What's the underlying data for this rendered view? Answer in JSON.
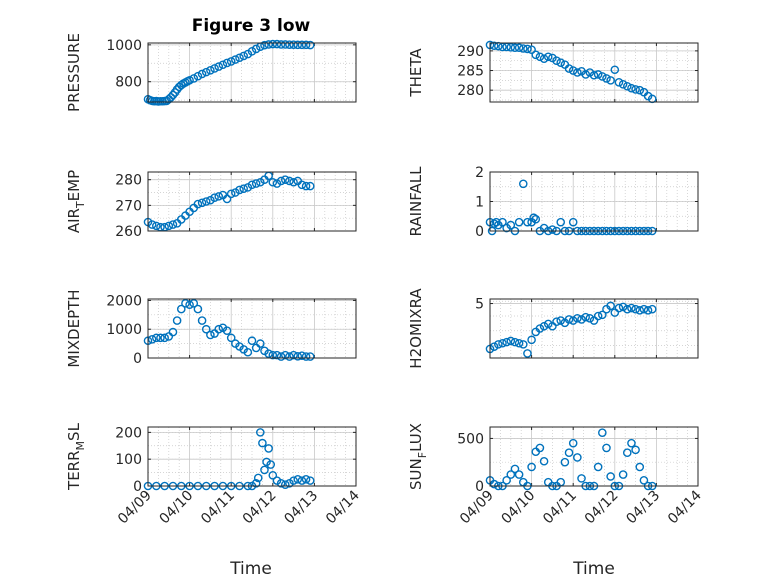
{
  "figure": {
    "title": "Figure 3 low",
    "xlabel": "Time"
  },
  "colors": {
    "marker": "#0072BD",
    "axis": "#262626",
    "grid": "#c8c8c8"
  },
  "chart_data": [
    {
      "type": "scatter",
      "ylabel": "PRESSURE",
      "ylabel_sub": "",
      "ylim": [
        690,
        1010
      ],
      "yticks": [
        800,
        1000
      ],
      "xticks": [
        "04/09",
        "04/10",
        "04/11",
        "04/12",
        "04/13",
        "04/14"
      ],
      "show_xticklabels": false,
      "x": [
        0.0,
        0.05,
        0.1,
        0.15,
        0.2,
        0.25,
        0.3,
        0.35,
        0.4,
        0.45,
        0.5,
        0.55,
        0.6,
        0.65,
        0.7,
        0.75,
        0.8,
        0.85,
        0.9,
        0.95,
        1.0,
        1.1,
        1.2,
        1.3,
        1.4,
        1.5,
        1.6,
        1.7,
        1.8,
        1.9,
        2.0,
        2.1,
        2.2,
        2.3,
        2.4,
        2.5,
        2.6,
        2.7,
        2.8,
        2.9,
        3.0,
        3.1,
        3.2,
        3.3,
        3.4,
        3.5,
        3.6,
        3.7,
        3.8,
        3.9
      ],
      "y": [
        705,
        700,
        696,
        694,
        695,
        693,
        694,
        694,
        695,
        696,
        705,
        715,
        728,
        742,
        758,
        772,
        782,
        790,
        796,
        802,
        808,
        818,
        830,
        842,
        852,
        862,
        872,
        882,
        892,
        902,
        910,
        920,
        930,
        940,
        950,
        965,
        978,
        990,
        998,
        1002,
        1004,
        1004,
        1002,
        1002,
        1001,
        1001,
        1000,
        1000,
        1000,
        999
      ]
    },
    {
      "type": "scatter",
      "ylabel": "THETA",
      "ylabel_sub": "",
      "ylim": [
        277,
        292
      ],
      "yticks": [
        280,
        285,
        290
      ],
      "xticks": [
        "04/09",
        "04/10",
        "04/11",
        "04/12",
        "04/13",
        "04/14"
      ],
      "show_xticklabels": false,
      "x": [
        0.0,
        0.1,
        0.2,
        0.3,
        0.4,
        0.5,
        0.6,
        0.7,
        0.8,
        0.9,
        1.0,
        1.1,
        1.2,
        1.3,
        1.4,
        1.5,
        1.6,
        1.7,
        1.8,
        1.9,
        2.0,
        2.1,
        2.2,
        2.3,
        2.4,
        2.5,
        2.6,
        2.7,
        2.8,
        2.9,
        3.0,
        3.1,
        3.2,
        3.3,
        3.4,
        3.5,
        3.6,
        3.7,
        3.8,
        3.9
      ],
      "y": [
        291.5,
        291.3,
        291.2,
        291.0,
        291.0,
        290.9,
        290.8,
        290.8,
        290.6,
        290.5,
        290.3,
        289.0,
        288.5,
        288.0,
        288.5,
        288.2,
        287.5,
        287.0,
        286.5,
        285.5,
        285.0,
        284.5,
        284.8,
        284.0,
        284.5,
        283.8,
        284.0,
        283.5,
        283.0,
        282.5,
        285.2,
        282.0,
        281.5,
        281.0,
        280.5,
        280.2,
        280.0,
        279.5,
        278.5,
        277.8
      ]
    },
    {
      "type": "scatter",
      "ylabel": "AIR",
      "ylabel_sub": "T",
      "ylabel_suffix": "EMP",
      "ylim": [
        260,
        283
      ],
      "yticks": [
        260,
        270,
        280
      ],
      "xticks": [
        "04/09",
        "04/10",
        "04/11",
        "04/12",
        "04/13",
        "04/14"
      ],
      "show_xticklabels": false,
      "x": [
        0.0,
        0.1,
        0.2,
        0.3,
        0.4,
        0.5,
        0.6,
        0.7,
        0.8,
        0.9,
        1.0,
        1.1,
        1.2,
        1.3,
        1.4,
        1.5,
        1.6,
        1.7,
        1.8,
        1.9,
        2.0,
        2.1,
        2.2,
        2.3,
        2.4,
        2.5,
        2.6,
        2.7,
        2.8,
        2.9,
        3.0,
        3.1,
        3.2,
        3.3,
        3.4,
        3.5,
        3.6,
        3.7,
        3.8,
        3.9
      ],
      "y": [
        263.5,
        262.5,
        262.0,
        261.5,
        261.5,
        262.0,
        262.5,
        263.0,
        264.5,
        266.0,
        267.5,
        269.0,
        270.5,
        271.0,
        271.5,
        272.0,
        273.0,
        273.5,
        274.0,
        272.5,
        274.5,
        275.0,
        276.0,
        276.5,
        277.0,
        278.0,
        278.5,
        279.0,
        280.0,
        281.5,
        279.0,
        278.5,
        279.5,
        280.0,
        279.5,
        279.0,
        279.5,
        278.0,
        277.5,
        277.5
      ]
    },
    {
      "type": "scatter",
      "ylabel": "RAINFALL",
      "ylabel_sub": "",
      "ylim": [
        0,
        2
      ],
      "yticks": [
        0,
        1,
        2
      ],
      "xticks": [
        "04/09",
        "04/10",
        "04/11",
        "04/12",
        "04/13",
        "04/14"
      ],
      "show_xticklabels": false,
      "x": [
        0.0,
        0.05,
        0.1,
        0.15,
        0.2,
        0.3,
        0.4,
        0.5,
        0.6,
        0.7,
        0.8,
        0.9,
        1.0,
        1.05,
        1.1,
        1.2,
        1.3,
        1.4,
        1.5,
        1.6,
        1.7,
        1.8,
        1.9,
        2.0,
        2.1,
        2.2,
        2.3,
        2.4,
        2.5,
        2.6,
        2.7,
        2.8,
        2.9,
        3.0,
        3.1,
        3.2,
        3.3,
        3.4,
        3.5,
        3.6,
        3.7,
        3.8,
        3.9
      ],
      "y": [
        0.3,
        0.0,
        0.25,
        0.3,
        0.2,
        0.3,
        0.1,
        0.2,
        0.0,
        0.3,
        1.6,
        0.3,
        0.3,
        0.45,
        0.4,
        0.0,
        0.1,
        0.0,
        0.05,
        0.0,
        0.3,
        0.0,
        0.0,
        0.3,
        0.0,
        0.0,
        0.0,
        0.0,
        0.0,
        0.0,
        0.0,
        0.0,
        0.0,
        0.0,
        0.0,
        0.0,
        0.0,
        0.0,
        0.0,
        0.0,
        0.0,
        0.0,
        0.0
      ]
    },
    {
      "type": "scatter",
      "ylabel": "MIXDEPTH",
      "ylabel_sub": "",
      "ylim": [
        0,
        2050
      ],
      "yticks": [
        0,
        1000,
        2000
      ],
      "xticks": [
        "04/09",
        "04/10",
        "04/11",
        "04/12",
        "04/13",
        "04/14"
      ],
      "show_xticklabels": false,
      "x": [
        0.0,
        0.1,
        0.2,
        0.3,
        0.4,
        0.5,
        0.6,
        0.7,
        0.8,
        0.9,
        1.0,
        1.1,
        1.2,
        1.3,
        1.4,
        1.5,
        1.6,
        1.7,
        1.8,
        1.9,
        2.0,
        2.1,
        2.2,
        2.3,
        2.4,
        2.5,
        2.6,
        2.7,
        2.8,
        2.9,
        3.0,
        3.1,
        3.2,
        3.3,
        3.4,
        3.5,
        3.6,
        3.7,
        3.8,
        3.9
      ],
      "y": [
        600,
        650,
        700,
        700,
        700,
        750,
        900,
        1300,
        1700,
        1900,
        1850,
        1900,
        1700,
        1300,
        1000,
        800,
        850,
        1000,
        1050,
        950,
        700,
        500,
        400,
        300,
        200,
        600,
        350,
        500,
        250,
        150,
        100,
        100,
        50,
        100,
        50,
        100,
        60,
        80,
        50,
        50
      ]
    },
    {
      "type": "scatter",
      "ylabel": "H2OMIXRA",
      "ylabel_sub": "",
      "ylim": [
        0.2,
        5.4
      ],
      "yticks": [
        5
      ],
      "xticks": [
        "04/09",
        "04/10",
        "04/11",
        "04/12",
        "04/13",
        "04/14"
      ],
      "show_xticklabels": false,
      "x": [
        0.0,
        0.1,
        0.2,
        0.3,
        0.4,
        0.5,
        0.6,
        0.7,
        0.8,
        0.9,
        1.0,
        1.1,
        1.2,
        1.3,
        1.4,
        1.5,
        1.6,
        1.7,
        1.8,
        1.9,
        2.0,
        2.1,
        2.2,
        2.3,
        2.4,
        2.5,
        2.6,
        2.7,
        2.8,
        2.9,
        3.0,
        3.1,
        3.2,
        3.3,
        3.4,
        3.5,
        3.6,
        3.7,
        3.8,
        3.9
      ],
      "y": [
        1.0,
        1.2,
        1.4,
        1.5,
        1.6,
        1.7,
        1.6,
        1.5,
        1.4,
        0.6,
        1.8,
        2.5,
        2.8,
        3.0,
        3.2,
        3.0,
        3.4,
        3.5,
        3.3,
        3.6,
        3.5,
        3.7,
        3.6,
        3.8,
        3.7,
        3.5,
        3.9,
        4.0,
        4.5,
        4.8,
        4.2,
        4.6,
        4.7,
        4.5,
        4.6,
        4.5,
        4.4,
        4.5,
        4.4,
        4.5
      ]
    },
    {
      "type": "scatter",
      "ylabel": "TERR",
      "ylabel_sub": "M",
      "ylabel_suffix": "SL",
      "ylim": [
        0,
        220
      ],
      "yticks": [
        0,
        100,
        200
      ],
      "xticks": [
        "04/09",
        "04/10",
        "04/11",
        "04/12",
        "04/13",
        "04/14"
      ],
      "show_xticklabels": true,
      "x": [
        0.0,
        0.2,
        0.4,
        0.6,
        0.8,
        1.0,
        1.2,
        1.4,
        1.6,
        1.8,
        2.0,
        2.2,
        2.4,
        2.5,
        2.6,
        2.65,
        2.7,
        2.75,
        2.8,
        2.85,
        2.9,
        2.95,
        3.0,
        3.1,
        3.2,
        3.3,
        3.4,
        3.5,
        3.6,
        3.7,
        3.8,
        3.9
      ],
      "y": [
        0,
        0,
        0,
        0,
        0,
        0,
        0,
        0,
        0,
        0,
        0,
        0,
        0,
        0,
        10,
        30,
        200,
        160,
        60,
        90,
        140,
        80,
        40,
        20,
        10,
        5,
        10,
        20,
        25,
        20,
        25,
        20
      ]
    },
    {
      "type": "scatter",
      "ylabel": "SUN",
      "ylabel_sub": "F",
      "ylabel_suffix": "LUX",
      "ylim": [
        0,
        620
      ],
      "yticks": [
        0,
        500
      ],
      "xticks": [
        "04/09",
        "04/10",
        "04/11",
        "04/12",
        "04/13",
        "04/14"
      ],
      "show_xticklabels": true,
      "x": [
        0.0,
        0.1,
        0.2,
        0.3,
        0.4,
        0.5,
        0.6,
        0.7,
        0.8,
        0.9,
        1.0,
        1.1,
        1.2,
        1.3,
        1.4,
        1.5,
        1.6,
        1.7,
        1.8,
        1.9,
        2.0,
        2.1,
        2.2,
        2.3,
        2.4,
        2.5,
        2.6,
        2.7,
        2.8,
        2.9,
        3.0,
        3.1,
        3.2,
        3.3,
        3.4,
        3.5,
        3.6,
        3.7,
        3.8,
        3.9
      ],
      "y": [
        60,
        20,
        0,
        0,
        60,
        120,
        180,
        120,
        40,
        0,
        200,
        360,
        400,
        260,
        40,
        0,
        0,
        40,
        250,
        350,
        450,
        300,
        80,
        0,
        0,
        0,
        200,
        560,
        400,
        100,
        0,
        0,
        120,
        350,
        450,
        380,
        200,
        60,
        0,
        0
      ]
    }
  ]
}
